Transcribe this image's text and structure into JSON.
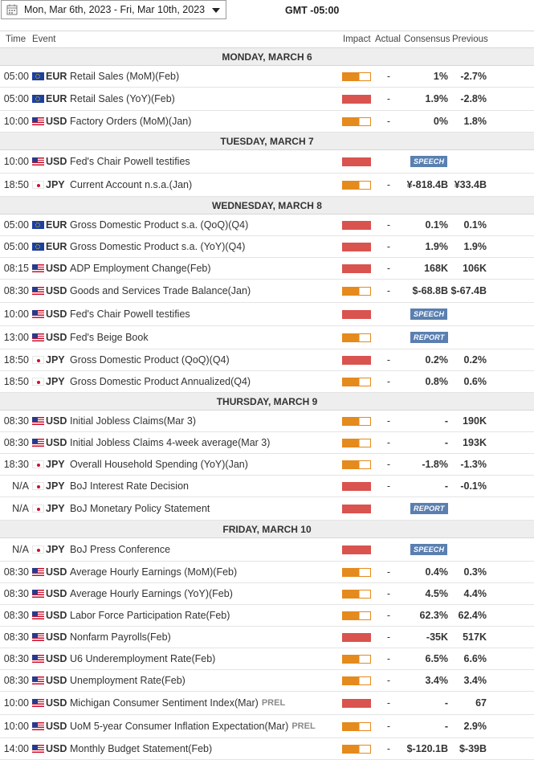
{
  "daterange": "Mon, Mar 6th, 2023 -   Fri, Mar 10th, 2023",
  "timezone": "GMT -05:00",
  "columns": {
    "time": "Time",
    "event": "Event",
    "impact": "Impact",
    "actual": "Actual",
    "consensus": "Consensus",
    "previous": "Previous"
  },
  "days": [
    {
      "label": "MONDAY, MARCH 6",
      "events": [
        {
          "time": "05:00",
          "flag": "eu",
          "cur": "EUR",
          "event": "Retail Sales (MoM)(Feb)",
          "impact": "med",
          "actual": "-",
          "consensus": "1%",
          "previous": "-2.7%"
        },
        {
          "time": "05:00",
          "flag": "eu",
          "cur": "EUR",
          "event": "Retail Sales (YoY)(Feb)",
          "impact": "high",
          "actual": "-",
          "consensus": "1.9%",
          "previous": "-2.8%"
        },
        {
          "time": "10:00",
          "flag": "us",
          "cur": "USD",
          "event": "Factory Orders (MoM)(Jan)",
          "impact": "med",
          "actual": "-",
          "consensus": "0%",
          "previous": "1.8%"
        }
      ]
    },
    {
      "label": "TUESDAY, MARCH 7",
      "events": [
        {
          "time": "10:00",
          "flag": "us",
          "cur": "USD",
          "event": "Fed's Chair Powell testifies",
          "impact": "high",
          "badge": "SPEECH"
        },
        {
          "time": "18:50",
          "flag": "jp",
          "cur": "JPY",
          "event": "Current Account n.s.a.(Jan)",
          "impact": "med",
          "actual": "-",
          "consensus": "¥-818.4B",
          "previous": "¥33.4B"
        }
      ]
    },
    {
      "label": "WEDNESDAY, MARCH 8",
      "events": [
        {
          "time": "05:00",
          "flag": "eu",
          "cur": "EUR",
          "event": "Gross Domestic Product s.a. (QoQ)(Q4)",
          "impact": "high",
          "actual": "-",
          "consensus": "0.1%",
          "previous": "0.1%"
        },
        {
          "time": "05:00",
          "flag": "eu",
          "cur": "EUR",
          "event": "Gross Domestic Product s.a. (YoY)(Q4)",
          "impact": "high",
          "actual": "-",
          "consensus": "1.9%",
          "previous": "1.9%"
        },
        {
          "time": "08:15",
          "flag": "us",
          "cur": "USD",
          "event": "ADP Employment Change(Feb)",
          "impact": "high",
          "actual": "-",
          "consensus": "168K",
          "previous": "106K"
        },
        {
          "time": "08:30",
          "flag": "us",
          "cur": "USD",
          "event": "Goods and Services Trade Balance(Jan)",
          "impact": "med",
          "actual": "-",
          "consensus": "$-68.8B",
          "previous": "$-67.4B"
        },
        {
          "time": "10:00",
          "flag": "us",
          "cur": "USD",
          "event": "Fed's Chair Powell testifies",
          "impact": "high",
          "badge": "SPEECH"
        },
        {
          "time": "13:00",
          "flag": "us",
          "cur": "USD",
          "event": "Fed's Beige Book",
          "impact": "med",
          "badge": "REPORT"
        },
        {
          "time": "18:50",
          "flag": "jp",
          "cur": "JPY",
          "event": "Gross Domestic Product (QoQ)(Q4)",
          "impact": "high",
          "actual": "-",
          "consensus": "0.2%",
          "previous": "0.2%"
        },
        {
          "time": "18:50",
          "flag": "jp",
          "cur": "JPY",
          "event": "Gross Domestic Product Annualized(Q4)",
          "impact": "med",
          "actual": "-",
          "consensus": "0.8%",
          "previous": "0.6%"
        }
      ]
    },
    {
      "label": "THURSDAY, MARCH 9",
      "events": [
        {
          "time": "08:30",
          "flag": "us",
          "cur": "USD",
          "event": "Initial Jobless Claims(Mar 3)",
          "impact": "med",
          "actual": "-",
          "consensus": "-",
          "previous": "190K"
        },
        {
          "time": "08:30",
          "flag": "us",
          "cur": "USD",
          "event": "Initial Jobless Claims 4-week average(Mar 3)",
          "impact": "med",
          "actual": "-",
          "consensus": "-",
          "previous": "193K"
        },
        {
          "time": "18:30",
          "flag": "jp",
          "cur": "JPY",
          "event": "Overall Household Spending (YoY)(Jan)",
          "impact": "med",
          "actual": "-",
          "consensus": "-1.8%",
          "previous": "-1.3%"
        },
        {
          "time": "N/A",
          "flag": "jp",
          "cur": "JPY",
          "event": "BoJ Interest Rate Decision",
          "impact": "high",
          "actual": "-",
          "consensus": "-",
          "previous": "-0.1%"
        },
        {
          "time": "N/A",
          "flag": "jp",
          "cur": "JPY",
          "event": "BoJ Monetary Policy Statement",
          "impact": "high",
          "badge": "REPORT"
        }
      ]
    },
    {
      "label": "FRIDAY, MARCH 10",
      "events": [
        {
          "time": "N/A",
          "flag": "jp",
          "cur": "JPY",
          "event": "BoJ Press Conference",
          "impact": "high",
          "badge": "SPEECH"
        },
        {
          "time": "08:30",
          "flag": "us",
          "cur": "USD",
          "event": "Average Hourly Earnings (MoM)(Feb)",
          "impact": "med",
          "actual": "-",
          "consensus": "0.4%",
          "previous": "0.3%"
        },
        {
          "time": "08:30",
          "flag": "us",
          "cur": "USD",
          "event": "Average Hourly Earnings (YoY)(Feb)",
          "impact": "med",
          "actual": "-",
          "consensus": "4.5%",
          "previous": "4.4%"
        },
        {
          "time": "08:30",
          "flag": "us",
          "cur": "USD",
          "event": "Labor Force Participation Rate(Feb)",
          "impact": "med",
          "actual": "-",
          "consensus": "62.3%",
          "previous": "62.4%"
        },
        {
          "time": "08:30",
          "flag": "us",
          "cur": "USD",
          "event": "Nonfarm Payrolls(Feb)",
          "impact": "high",
          "actual": "-",
          "consensus": "-35K",
          "previous": "517K"
        },
        {
          "time": "08:30",
          "flag": "us",
          "cur": "USD",
          "event": "U6 Underemployment Rate(Feb)",
          "impact": "med",
          "actual": "-",
          "consensus": "6.5%",
          "previous": "6.6%"
        },
        {
          "time": "08:30",
          "flag": "us",
          "cur": "USD",
          "event": "Unemployment Rate(Feb)",
          "impact": "med",
          "actual": "-",
          "consensus": "3.4%",
          "previous": "3.4%"
        },
        {
          "time": "10:00",
          "flag": "us",
          "cur": "USD",
          "event": "Michigan Consumer Sentiment Index(Mar)",
          "prel": "PREL",
          "impact": "high",
          "actual": "-",
          "consensus": "-",
          "previous": "67"
        },
        {
          "time": "10:00",
          "flag": "us",
          "cur": "USD",
          "event": "UoM 5-year Consumer Inflation Expectation(Mar)",
          "prel": "PREL",
          "impact": "med",
          "actual": "-",
          "consensus": "-",
          "previous": "2.9%"
        },
        {
          "time": "14:00",
          "flag": "us",
          "cur": "USD",
          "event": "Monthly Budget Statement(Feb)",
          "impact": "med",
          "actual": "-",
          "consensus": "$-120.1B",
          "previous": "$-39B"
        }
      ]
    }
  ],
  "colors": {
    "high": "#d9534f",
    "medium": "#e58a1c",
    "badge": "#5a7fb0"
  }
}
